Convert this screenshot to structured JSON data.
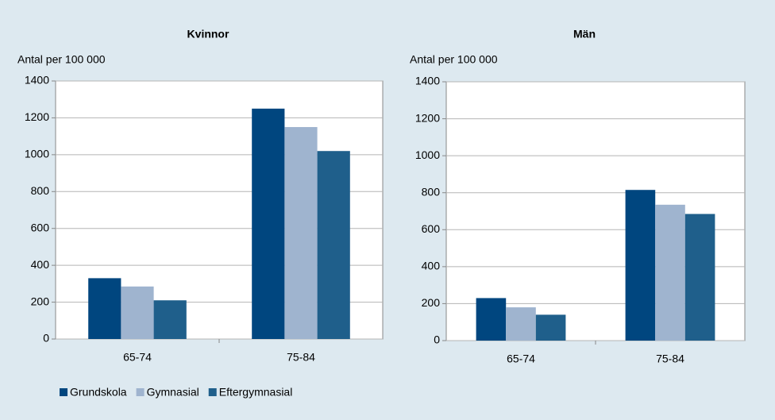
{
  "chart_data": [
    {
      "type": "bar",
      "title": "Kvinnor",
      "ylabel": "Antal per 100 000",
      "categories": [
        "65-74",
        "75-84"
      ],
      "series": [
        {
          "name": "Grundskola",
          "color": "#00467f",
          "values": [
            330,
            1250
          ]
        },
        {
          "name": "Gymnasial",
          "color": "#9fb4cf",
          "values": [
            285,
            1150
          ]
        },
        {
          "name": "Eftergymnasial",
          "color": "#1f5f8b",
          "values": [
            210,
            1020
          ]
        }
      ],
      "ylim": [
        0,
        1400
      ],
      "yticks": [
        0,
        200,
        400,
        600,
        800,
        1000,
        1200,
        1400
      ],
      "grid": true,
      "legend": "bottom"
    },
    {
      "type": "bar",
      "title": "Män",
      "ylabel": "Antal per 100 000",
      "categories": [
        "65-74",
        "75-84"
      ],
      "series": [
        {
          "color": "#00467f",
          "values": [
            230,
            815
          ]
        },
        {
          "color": "#9fb4cf",
          "values": [
            180,
            735
          ]
        },
        {
          "color": "#1f5f8b",
          "values": [
            140,
            685
          ]
        }
      ],
      "ylim": [
        0,
        1400
      ],
      "yticks": [
        0,
        200,
        400,
        600,
        800,
        1000,
        1200,
        1400
      ],
      "grid": true
    }
  ]
}
